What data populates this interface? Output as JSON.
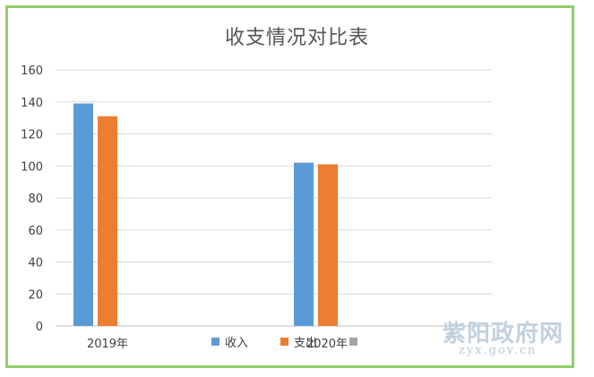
{
  "chart_data": {
    "type": "bar",
    "title": "收支情况对比表",
    "categories": [
      "2019年",
      "2020年"
    ],
    "series": [
      {
        "name": "收入",
        "color": "#5b9bd5",
        "values": [
          139,
          102
        ]
      },
      {
        "name": "支出",
        "color": "#ed7d31",
        "values": [
          131,
          101
        ]
      }
    ],
    "ylim": [
      0,
      160
    ],
    "yticks": [
      0,
      20,
      40,
      60,
      80,
      100,
      120,
      140,
      160
    ],
    "grid": true,
    "legend": "bottom"
  },
  "legend_extra_color": "#a5a5a5",
  "watermark": {
    "logo_text": "紫阳政府网",
    "url": "zyx.gov.cn"
  }
}
